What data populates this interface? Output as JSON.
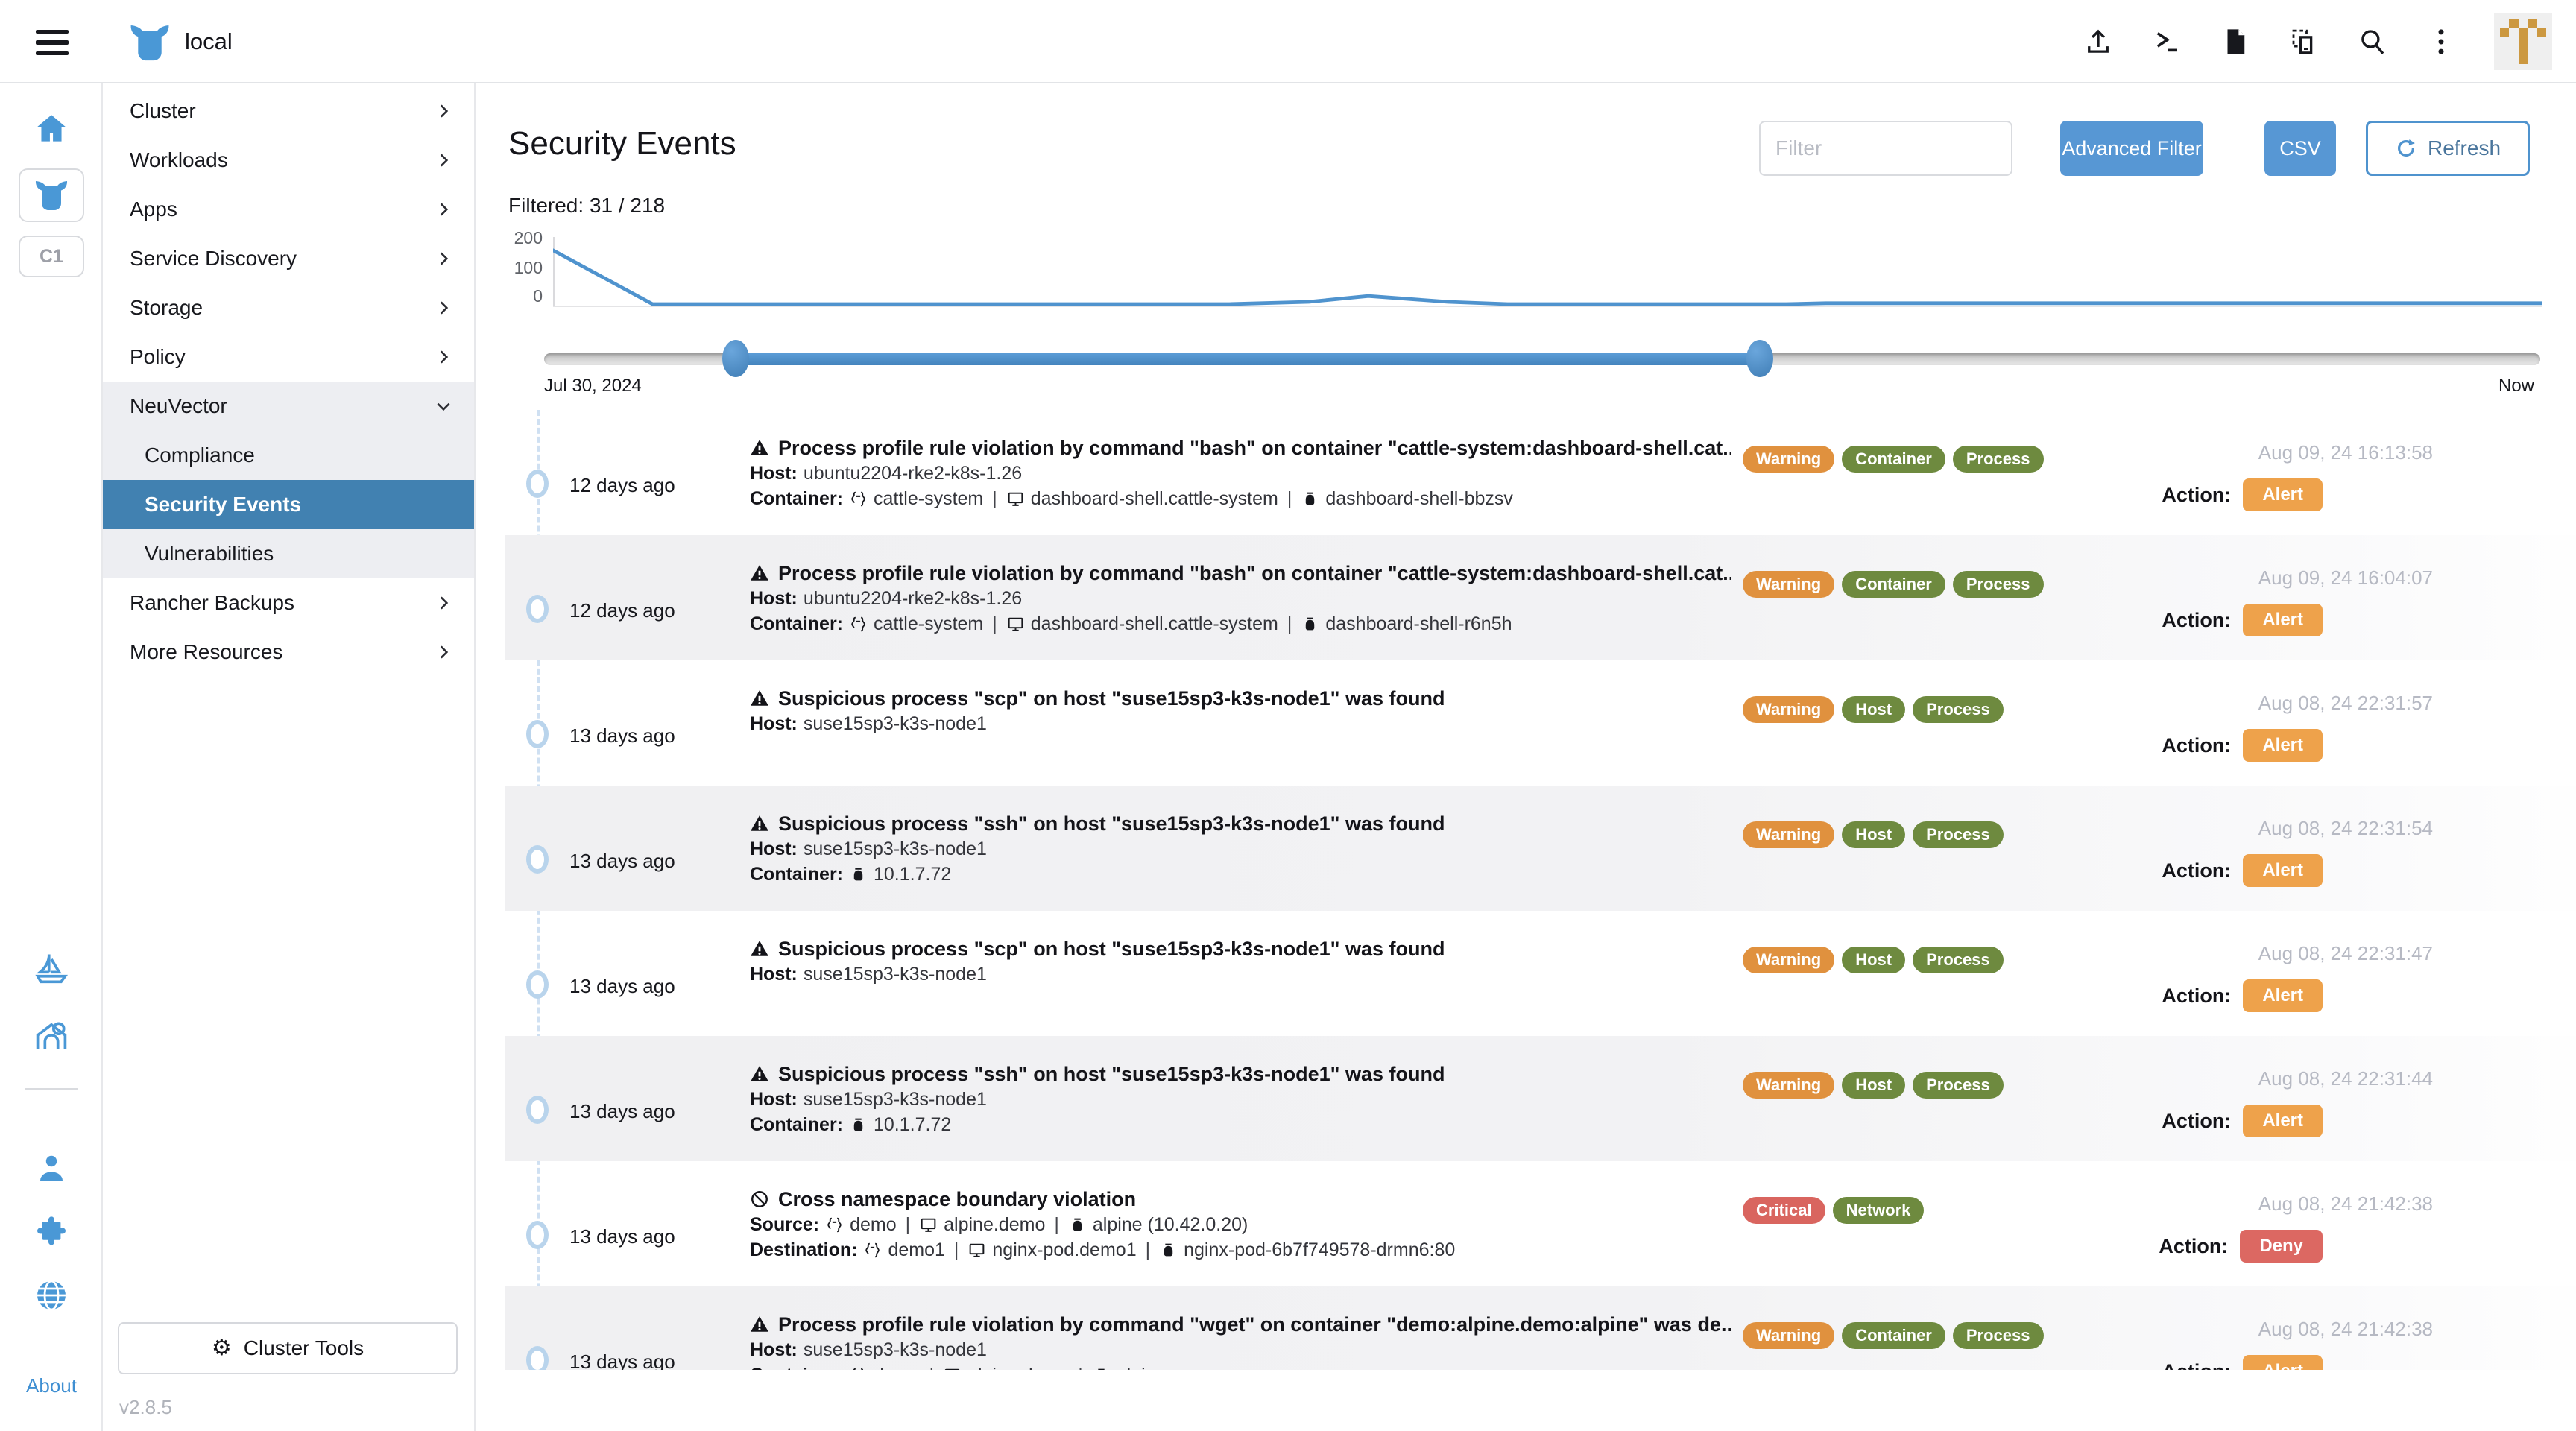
{
  "topbar": {
    "cluster_name": "local",
    "icons": [
      "upload-icon",
      "shell-icon",
      "docs-icon",
      "kubeconfig-icon",
      "search-icon",
      "kebab-menu-icon"
    ],
    "avatar": {
      "pattern": [
        "01010",
        "10101",
        "00100",
        "00100",
        "00100"
      ],
      "color": "#cc9840",
      "bg": "#efefef"
    }
  },
  "sidebar": {
    "rail_top": [
      "home-icon",
      "cluster-steer-icon",
      "cluster-badge"
    ],
    "cluster_badge_label": "C1",
    "rail_bottom": [
      "fleet-sailboat-icon",
      "harvester-barn-icon",
      "user-icon",
      "extensions-puzzle-icon",
      "globe-icon"
    ],
    "about_label": "About",
    "nav": [
      {
        "label": "Cluster",
        "chevron": "right"
      },
      {
        "label": "Workloads",
        "chevron": "right"
      },
      {
        "label": "Apps",
        "chevron": "right"
      },
      {
        "label": "Service Discovery",
        "chevron": "right"
      },
      {
        "label": "Storage",
        "chevron": "right"
      },
      {
        "label": "Policy",
        "chevron": "right"
      },
      {
        "label": "NeuVector",
        "chevron": "down",
        "expanded": true,
        "children": [
          {
            "label": "Compliance",
            "selected": false
          },
          {
            "label": "Security Events",
            "selected": true
          },
          {
            "label": "Vulnerabilities",
            "selected": false
          }
        ]
      },
      {
        "label": "Rancher Backups",
        "chevron": "right"
      },
      {
        "label": "More Resources",
        "chevron": "right"
      }
    ],
    "cluster_tools_label": "Cluster Tools",
    "version": "v2.8.5"
  },
  "header": {
    "title": "Security Events",
    "filtered_label": "Filtered: 31 / 218",
    "filter_placeholder": "Filter",
    "advanced_filter_label": "Advanced Filter",
    "csv_label": "CSV",
    "refresh_label": "Refresh"
  },
  "chart_data": {
    "type": "line",
    "title": "",
    "yticks": [
      200,
      100,
      0
    ],
    "ylim": [
      0,
      200
    ],
    "x_range": [
      "Jul 30, 2024",
      "Now"
    ],
    "grid": false,
    "line_color": "#4f93ce",
    "points": [
      [
        0,
        190
      ],
      [
        5,
        5
      ],
      [
        34,
        5
      ],
      [
        38,
        13
      ],
      [
        41,
        33
      ],
      [
        45,
        13
      ],
      [
        48,
        5
      ],
      [
        62,
        5
      ],
      [
        64,
        8
      ],
      [
        100,
        8
      ]
    ]
  },
  "slider": {
    "start_label": "Jul 30, 2024",
    "end_label": "Now",
    "range_pct": [
      9.6,
      60.9
    ]
  },
  "colors": {
    "warning": "#e0913e",
    "category": "#6e8a3f",
    "critical": "#d9655f",
    "alert": "#eea24b",
    "deny": "#dc6862",
    "accent": "#4f93ce"
  },
  "events": [
    {
      "time_ago": "12 days ago",
      "title_icon": "warning-triangle-icon",
      "title": "Process profile rule violation by command \"bash\" on container \"cattle-system:dashboard-shell.cat...",
      "badges": [
        {
          "label": "Warning",
          "color": "warning"
        },
        {
          "label": "Container",
          "color": "category"
        },
        {
          "label": "Process",
          "color": "category"
        }
      ],
      "lines": [
        {
          "label": "Host:",
          "segments": [
            {
              "icon": null,
              "text": "ubuntu2204-rke2-k8s-1.26"
            }
          ]
        },
        {
          "label": "Container:",
          "segments": [
            {
              "icon": "namespace-icon",
              "text": "cattle-system"
            },
            {
              "icon": "service-icon",
              "text": "dashboard-shell.cattle-system"
            },
            {
              "icon": "pod-icon",
              "text": "dashboard-shell-bbzsv"
            }
          ]
        }
      ],
      "timestamp": "Aug 09, 24 16:13:58",
      "action_label": "Action:",
      "action": {
        "label": "Alert",
        "color": "alert"
      }
    },
    {
      "time_ago": "12 days ago",
      "title_icon": "warning-triangle-icon",
      "title": "Process profile rule violation by command \"bash\" on container \"cattle-system:dashboard-shell.cat...",
      "badges": [
        {
          "label": "Warning",
          "color": "warning"
        },
        {
          "label": "Container",
          "color": "category"
        },
        {
          "label": "Process",
          "color": "category"
        }
      ],
      "lines": [
        {
          "label": "Host:",
          "segments": [
            {
              "icon": null,
              "text": "ubuntu2204-rke2-k8s-1.26"
            }
          ]
        },
        {
          "label": "Container:",
          "segments": [
            {
              "icon": "namespace-icon",
              "text": "cattle-system"
            },
            {
              "icon": "service-icon",
              "text": "dashboard-shell.cattle-system"
            },
            {
              "icon": "pod-icon",
              "text": "dashboard-shell-r6n5h"
            }
          ]
        }
      ],
      "timestamp": "Aug 09, 24 16:04:07",
      "action_label": "Action:",
      "action": {
        "label": "Alert",
        "color": "alert"
      }
    },
    {
      "time_ago": "13 days ago",
      "title_icon": "warning-triangle-icon",
      "title": "Suspicious process \"scp\" on host \"suse15sp3-k3s-node1\" was found",
      "badges": [
        {
          "label": "Warning",
          "color": "warning"
        },
        {
          "label": "Host",
          "color": "category"
        },
        {
          "label": "Process",
          "color": "category"
        }
      ],
      "lines": [
        {
          "label": "Host:",
          "segments": [
            {
              "icon": null,
              "text": "suse15sp3-k3s-node1"
            }
          ]
        }
      ],
      "timestamp": "Aug 08, 24 22:31:57",
      "action_label": "Action:",
      "action": {
        "label": "Alert",
        "color": "alert"
      }
    },
    {
      "time_ago": "13 days ago",
      "title_icon": "warning-triangle-icon",
      "title": "Suspicious process \"ssh\" on host \"suse15sp3-k3s-node1\" was found",
      "badges": [
        {
          "label": "Warning",
          "color": "warning"
        },
        {
          "label": "Host",
          "color": "category"
        },
        {
          "label": "Process",
          "color": "category"
        }
      ],
      "lines": [
        {
          "label": "Host:",
          "segments": [
            {
              "icon": null,
              "text": "suse15sp3-k3s-node1"
            }
          ]
        },
        {
          "label": "Container:",
          "segments": [
            {
              "icon": "pod-icon",
              "text": "10.1.7.72"
            }
          ]
        }
      ],
      "timestamp": "Aug 08, 24 22:31:54",
      "action_label": "Action:",
      "action": {
        "label": "Alert",
        "color": "alert"
      }
    },
    {
      "time_ago": "13 days ago",
      "title_icon": "warning-triangle-icon",
      "title": "Suspicious process \"scp\" on host \"suse15sp3-k3s-node1\" was found",
      "badges": [
        {
          "label": "Warning",
          "color": "warning"
        },
        {
          "label": "Host",
          "color": "category"
        },
        {
          "label": "Process",
          "color": "category"
        }
      ],
      "lines": [
        {
          "label": "Host:",
          "segments": [
            {
              "icon": null,
              "text": "suse15sp3-k3s-node1"
            }
          ]
        }
      ],
      "timestamp": "Aug 08, 24 22:31:47",
      "action_label": "Action:",
      "action": {
        "label": "Alert",
        "color": "alert"
      }
    },
    {
      "time_ago": "13 days ago",
      "title_icon": "warning-triangle-icon",
      "title": "Suspicious process \"ssh\" on host \"suse15sp3-k3s-node1\" was found",
      "badges": [
        {
          "label": "Warning",
          "color": "warning"
        },
        {
          "label": "Host",
          "color": "category"
        },
        {
          "label": "Process",
          "color": "category"
        }
      ],
      "lines": [
        {
          "label": "Host:",
          "segments": [
            {
              "icon": null,
              "text": "suse15sp3-k3s-node1"
            }
          ]
        },
        {
          "label": "Container:",
          "segments": [
            {
              "icon": "pod-icon",
              "text": "10.1.7.72"
            }
          ]
        }
      ],
      "timestamp": "Aug 08, 24 22:31:44",
      "action_label": "Action:",
      "action": {
        "label": "Alert",
        "color": "alert"
      }
    },
    {
      "time_ago": "13 days ago",
      "title_icon": "prohibition-icon",
      "title": "Cross namespace boundary violation",
      "badges": [
        {
          "label": "Critical",
          "color": "critical"
        },
        {
          "label": "Network",
          "color": "category"
        }
      ],
      "lines": [
        {
          "label": "Source:",
          "segments": [
            {
              "icon": "namespace-icon",
              "text": "demo"
            },
            {
              "icon": "service-icon",
              "text": "alpine.demo"
            },
            {
              "icon": "pod-icon",
              "text": "alpine (10.42.0.20)"
            }
          ]
        },
        {
          "label": "Destination:",
          "segments": [
            {
              "icon": "namespace-icon",
              "text": "demo1"
            },
            {
              "icon": "service-icon",
              "text": "nginx-pod.demo1"
            },
            {
              "icon": "pod-icon",
              "text": "nginx-pod-6b7f749578-drmn6:80"
            }
          ]
        }
      ],
      "timestamp": "Aug 08, 24 21:42:38",
      "action_label": "Action:",
      "action": {
        "label": "Deny",
        "color": "deny"
      }
    },
    {
      "time_ago": "13 days ago",
      "title_icon": "warning-triangle-icon",
      "title": "Process profile rule violation by command \"wget\" on container \"demo:alpine.demo:alpine\" was de...",
      "badges": [
        {
          "label": "Warning",
          "color": "warning"
        },
        {
          "label": "Container",
          "color": "category"
        },
        {
          "label": "Process",
          "color": "category"
        }
      ],
      "lines": [
        {
          "label": "Host:",
          "segments": [
            {
              "icon": null,
              "text": "suse15sp3-k3s-node1"
            }
          ]
        },
        {
          "label": "Container:",
          "segments": [
            {
              "icon": "namespace-icon",
              "text": "demo"
            },
            {
              "icon": "service-icon",
              "text": "alpine.demo"
            },
            {
              "icon": "pod-icon",
              "text": "alpine"
            }
          ]
        }
      ],
      "timestamp": "Aug 08, 24 21:42:38",
      "action_label": "Action:",
      "action": {
        "label": "Alert",
        "color": "alert"
      }
    }
  ]
}
